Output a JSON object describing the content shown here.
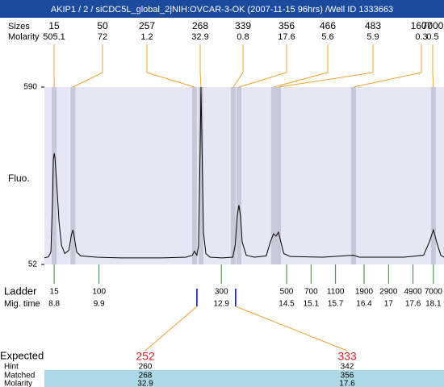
{
  "title": "AKIP1 / 2 / siCDC5L_global_2|NIH:OVCAR-3-OK (2007-11-15 96hrs) /Well ID 1333663",
  "chart_data": {
    "type": "line",
    "ylabel": "Fluo.",
    "xlim": [
      8.56,
      18.36
    ],
    "ylim": [
      52,
      590
    ],
    "yticks": [
      52,
      590
    ],
    "x": [
      8.56,
      8.66,
      8.72,
      8.76,
      8.78,
      8.8,
      8.82,
      8.86,
      8.92,
      8.98,
      9.06,
      9.16,
      9.22,
      9.26,
      9.3,
      9.35,
      9.45,
      9.85,
      10.44,
      11.43,
      12.03,
      12.19,
      12.24,
      12.3,
      12.34,
      12.38,
      12.4,
      12.42,
      12.46,
      12.52,
      12.62,
      12.92,
      13.18,
      13.24,
      13.29,
      13.33,
      13.37,
      13.41,
      13.51,
      13.71,
      14.0,
      14.1,
      14.18,
      14.24,
      14.3,
      14.36,
      14.43,
      14.59,
      15.39,
      16.14,
      16.28,
      17.37,
      17.86,
      18.0,
      18.1,
      18.18,
      18.28,
      18.36
    ],
    "series": [
      {
        "color": "#000000",
        "values": [
          72,
          75,
          90,
          250,
          370,
          389,
          375,
          300,
          180,
          110,
          85,
          95,
          140,
          157,
          130,
          90,
          78,
          74,
          72,
          72,
          74,
          80,
          92,
          80,
          110,
          400,
          590,
          450,
          150,
          85,
          74,
          72,
          74,
          110,
          200,
          232,
          200,
          120,
          80,
          74,
          78,
          120,
          145,
          138,
          150,
          120,
          85,
          76,
          74,
          80,
          74,
          74,
          80,
          120,
          157,
          120,
          80,
          74
        ]
      }
    ]
  },
  "peaks": {
    "labels": [
      "Sizes",
      "Molarity"
    ],
    "times": [
      8.8,
      9.26,
      12.24,
      12.4,
      13.19,
      13.33,
      14.18,
      14.3,
      16.14,
      18.1
    ],
    "sizes": [
      15,
      50,
      257,
      268,
      339,
      356,
      466,
      483,
      1607,
      7000
    ],
    "molarity": [
      505.1,
      72,
      1.2,
      32.9,
      0.8,
      17.6,
      5.6,
      5.9,
      0.3,
      0.5
    ]
  },
  "ladder": {
    "labels": [
      "Ladder",
      "Mig. time"
    ],
    "sizes": [
      15,
      100,
      300,
      500,
      700,
      1100,
      1900,
      2900,
      4900,
      7000
    ],
    "times": [
      8.8,
      9.9,
      12.9,
      14.5,
      15.1,
      15.7,
      16.4,
      17,
      17.6,
      18.1
    ]
  },
  "matches": {
    "labels": [
      "Expected",
      "Hint",
      "Matched",
      "Molarity"
    ],
    "columns": [
      {
        "time": 12.3,
        "expected": 252,
        "hint": 260,
        "matched": 268,
        "molarity": 32.9
      },
      {
        "time": 13.25,
        "expected": 333,
        "hint": 342,
        "matched": 356,
        "molarity": 17.6
      }
    ]
  }
}
